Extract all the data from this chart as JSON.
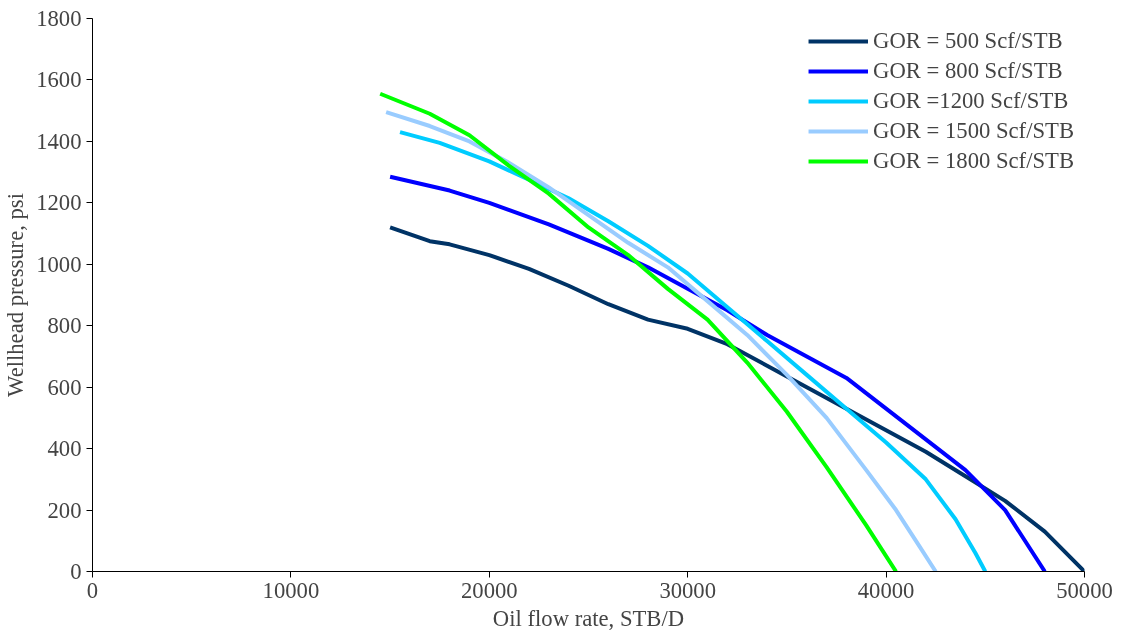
{
  "chart_data": {
    "type": "line",
    "xlabel": "Oil flow rate, STB/D",
    "ylabel": "Wellhead pressure, psi",
    "xlim": [
      0,
      50000
    ],
    "xticks": [
      0,
      10000,
      20000,
      30000,
      40000,
      50000
    ],
    "ylim": [
      0,
      1800
    ],
    "yticks": [
      0,
      200,
      400,
      600,
      800,
      1000,
      1200,
      1400,
      1600,
      1800
    ],
    "grid": false,
    "legend": "top right",
    "marker": "none",
    "line_style": "solid",
    "series": [
      {
        "name": "GOR = 500 Scf/STB",
        "color": "#003366",
        "x": [
          15000,
          17000,
          18000,
          20000,
          22000,
          24000,
          26000,
          28000,
          30000,
          32000,
          34000,
          36000,
          38000,
          40000,
          42000,
          44000,
          46000,
          48000,
          50000
        ],
        "values": [
          1120,
          1075,
          1065,
          1030,
          985,
          930,
          870,
          820,
          790,
          740,
          670,
          600,
          530,
          460,
          390,
          310,
          230,
          130,
          0
        ]
      },
      {
        "name": "GOR = 800 Scf/STB",
        "color": "#0000ff",
        "x": [
          15000,
          18000,
          20000,
          23000,
          26000,
          28000,
          30000,
          32000,
          34000,
          36000,
          38000,
          40000,
          42000,
          44000,
          46000,
          48000
        ],
        "values": [
          1285,
          1240,
          1200,
          1130,
          1050,
          990,
          920,
          850,
          770,
          700,
          630,
          530,
          430,
          330,
          200,
          0
        ]
      },
      {
        "name": "GOR =1200 Scf/STB",
        "color": "#00ccff",
        "x": [
          15500,
          17500,
          20000,
          22000,
          24000,
          26000,
          28000,
          30000,
          32000,
          34000,
          36000,
          38000,
          40000,
          42000,
          43500,
          44500,
          45000
        ],
        "values": [
          1430,
          1395,
          1335,
          1275,
          1215,
          1140,
          1060,
          970,
          860,
          750,
          640,
          530,
          420,
          300,
          170,
          60,
          0
        ]
      },
      {
        "name": "GOR = 1500 Scf/STB",
        "color": "#99ccff",
        "x": [
          14800,
          17000,
          19000,
          21000,
          23000,
          25000,
          27000,
          29000,
          31000,
          33000,
          35000,
          37000,
          39000,
          40500,
          41700,
          42500
        ],
        "values": [
          1495,
          1450,
          1400,
          1330,
          1250,
          1160,
          1070,
          990,
          880,
          770,
          640,
          500,
          330,
          200,
          80,
          0
        ]
      },
      {
        "name": "GOR = 1800 Scf/STB",
        "color": "#00ff00",
        "x": [
          14500,
          17000,
          19000,
          21000,
          23000,
          25000,
          27000,
          29000,
          31000,
          33000,
          35000,
          37000,
          39000,
          40500
        ],
        "values": [
          1555,
          1490,
          1420,
          1320,
          1230,
          1120,
          1030,
          920,
          820,
          680,
          520,
          340,
          150,
          0
        ]
      }
    ]
  }
}
